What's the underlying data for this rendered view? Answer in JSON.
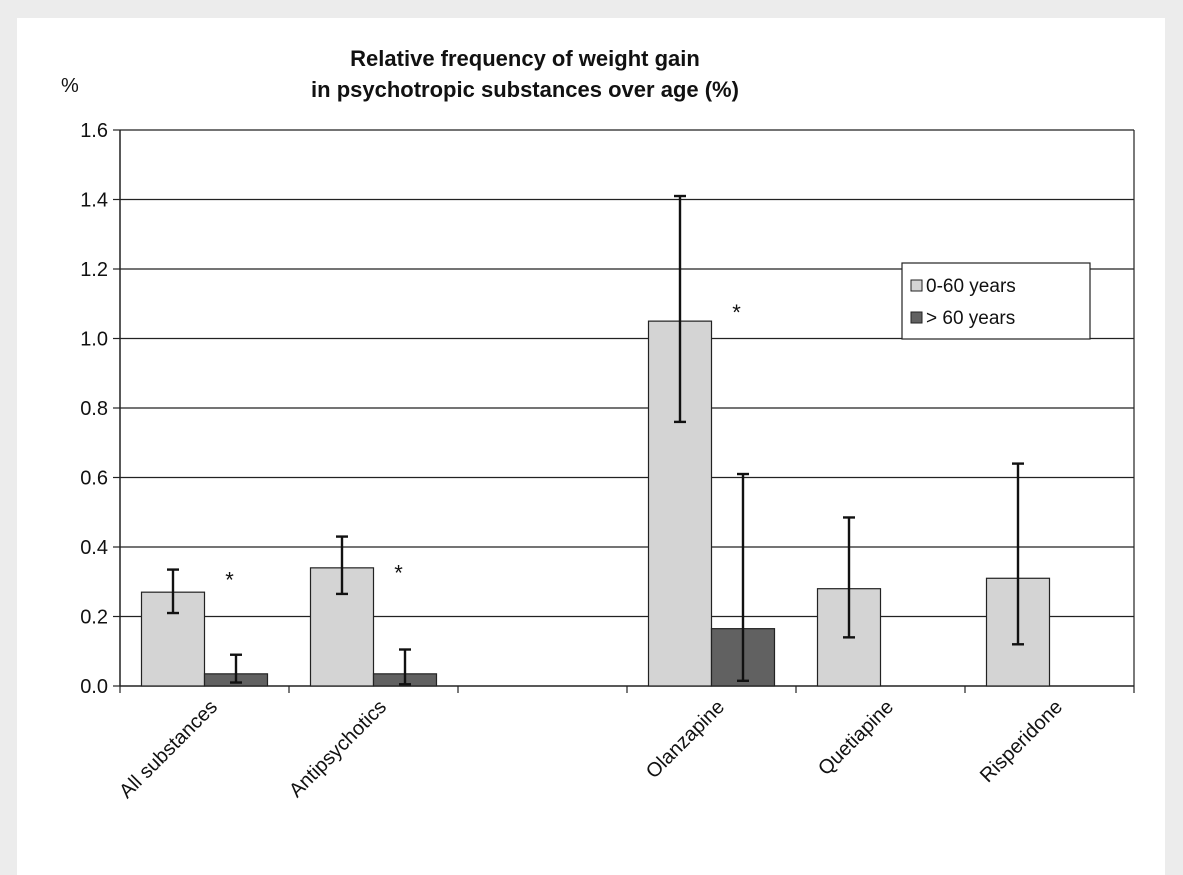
{
  "chart_data": {
    "type": "bar",
    "title_lines": [
      "Relative frequency of weight gain",
      "in psychotropic substances over age (%)"
    ],
    "unit_label": "%",
    "ylim": [
      0,
      1.6
    ],
    "yticks": [
      "0.0",
      "0.2",
      "0.4",
      "0.6",
      "0.8",
      "1.0",
      "1.2",
      "1.4",
      "1.6"
    ],
    "grid": true,
    "legend_placement": "top-right",
    "categories": [
      "All substances",
      "Antipsychotics",
      "",
      "Olanzapine",
      "Quetiapine",
      "Risperidone"
    ],
    "series": [
      {
        "name": "0-60 years",
        "color": "#d4d4d4",
        "values": [
          0.27,
          0.34,
          null,
          1.05,
          0.28,
          0.31
        ],
        "err_low": [
          0.21,
          0.265,
          null,
          0.76,
          0.14,
          0.12
        ],
        "err_high": [
          0.335,
          0.43,
          null,
          1.41,
          0.485,
          0.64
        ]
      },
      {
        "name": "> 60 years",
        "color": "#616161",
        "values": [
          0.035,
          0.035,
          null,
          0.165,
          null,
          null
        ],
        "err_low": [
          0.01,
          0.005,
          null,
          0.015,
          null,
          null
        ],
        "err_high": [
          0.09,
          0.105,
          null,
          0.61,
          null,
          null
        ]
      }
    ],
    "annotations": [
      {
        "text": "*",
        "category_index": 0,
        "y": 0.33
      },
      {
        "text": "*",
        "category_index": 1,
        "y": 0.35
      },
      {
        "text": "*",
        "category_index": 3,
        "y": 1.1
      }
    ]
  }
}
